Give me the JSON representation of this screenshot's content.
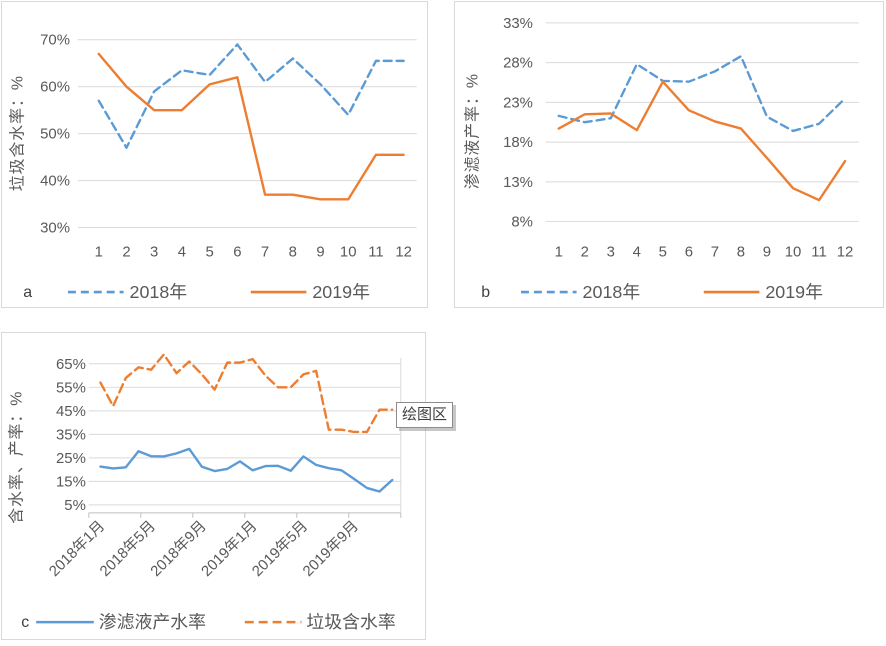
{
  "plot_area_label": "绘图区",
  "colors": {
    "series_blue": "#5B9BD5",
    "series_orange": "#ED7D31",
    "gridline": "#D9D9D9",
    "axis_line": "#BFBFBF",
    "tick_text": "#595959"
  },
  "chart_data": [
    {
      "id": "a",
      "type": "line",
      "panel_letter": "a",
      "ylabel": "垃圾含水率：%",
      "xlabel": "",
      "categories": [
        "1",
        "2",
        "3",
        "4",
        "5",
        "6",
        "7",
        "8",
        "9",
        "10",
        "11",
        "12"
      ],
      "yticks": [
        "70%",
        "60%",
        "50%",
        "40%",
        "30%"
      ],
      "ylim": [
        30,
        70
      ],
      "grid": true,
      "legend_position": "bottom",
      "series": [
        {
          "name": "2018年",
          "color": "#5B9BD5",
          "dashed": true,
          "values": [
            57,
            47,
            59,
            63.5,
            62.5,
            69,
            61,
            66,
            60.5,
            54,
            65.5,
            65.5
          ]
        },
        {
          "name": "2019年",
          "color": "#ED7D31",
          "dashed": false,
          "values": [
            67,
            60,
            55,
            55,
            60.5,
            62,
            37,
            37,
            36,
            36,
            45.5,
            45.5
          ]
        }
      ]
    },
    {
      "id": "b",
      "type": "line",
      "panel_letter": "b",
      "ylabel": "渗滤液产率：%",
      "xlabel": "",
      "categories": [
        "1",
        "2",
        "3",
        "4",
        "5",
        "6",
        "7",
        "8",
        "9",
        "10",
        "11",
        "12"
      ],
      "yticks": [
        "33%",
        "28%",
        "23%",
        "18%",
        "13%",
        "8%"
      ],
      "ylim": [
        8,
        33
      ],
      "grid": true,
      "legend_position": "bottom",
      "series": [
        {
          "name": "2018年",
          "color": "#5B9BD5",
          "dashed": true,
          "values": [
            21.3,
            20.5,
            21,
            27.8,
            25.7,
            25.6,
            26.9,
            28.8,
            21.2,
            19.4,
            20.3,
            23.5
          ]
        },
        {
          "name": "2019年",
          "color": "#ED7D31",
          "dashed": false,
          "values": [
            19.7,
            21.5,
            21.6,
            19.5,
            25.6,
            22,
            20.6,
            19.7,
            16,
            12.2,
            10.7,
            15.6
          ]
        }
      ]
    },
    {
      "id": "c",
      "type": "line",
      "panel_letter": "c",
      "ylabel": "含水率、产率：%",
      "xlabel": "",
      "n_points": 24,
      "x_tick_labels": [
        "2018年1月",
        "2018年5月",
        "2018年9月",
        "2019年1月",
        "2019年5月",
        "2019年9月"
      ],
      "x_tick_every": 4,
      "yticks": [
        "65%",
        "55%",
        "45%",
        "35%",
        "25%",
        "15%",
        "5%"
      ],
      "ylim": [
        5,
        65
      ],
      "grid": true,
      "legend_position": "bottom",
      "series": [
        {
          "name": "渗滤液产水率",
          "color": "#5B9BD5",
          "dashed": false,
          "values": [
            21.3,
            20.5,
            21,
            27.8,
            25.7,
            25.6,
            26.9,
            28.8,
            21.2,
            19.4,
            20.3,
            23.5,
            19.7,
            21.5,
            21.6,
            19.5,
            25.6,
            22,
            20.6,
            19.7,
            16,
            12.2,
            10.7,
            15.6
          ]
        },
        {
          "name": "垃圾含水率",
          "color": "#ED7D31",
          "dashed": true,
          "values": [
            57,
            47,
            59,
            63.5,
            62.5,
            69,
            61,
            66,
            60.5,
            54,
            65.5,
            65.5,
            67,
            60,
            55,
            55,
            60.5,
            62,
            37,
            37,
            36,
            36,
            45.5,
            45.5
          ]
        }
      ]
    }
  ]
}
